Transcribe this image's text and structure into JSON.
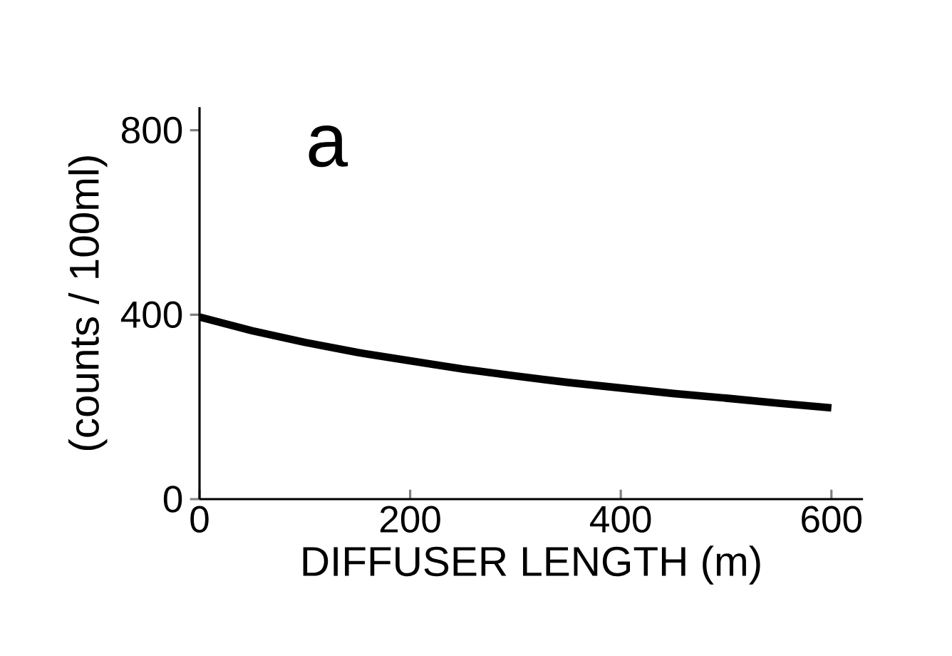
{
  "chart_data": {
    "type": "line",
    "xlabel": "DIFFUSER LENGTH (m)",
    "ylabel": "(counts / 100ml)",
    "annotations": [
      "a"
    ],
    "x": [
      0,
      50,
      100,
      150,
      200,
      250,
      300,
      350,
      400,
      450,
      500,
      550,
      600
    ],
    "series": [
      {
        "color": "#000000",
        "values": [
          395,
          365,
          340,
          318,
          300,
          282,
          267,
          253,
          241,
          229,
          219,
          208,
          198
        ]
      }
    ],
    "xlim": [
      0,
      630
    ],
    "ylim": [
      0,
      850
    ],
    "xticks": [
      0,
      200,
      400,
      600
    ],
    "yticks": [
      0,
      400,
      800
    ],
    "grid": false,
    "marker": "none",
    "line_style": "solid"
  }
}
